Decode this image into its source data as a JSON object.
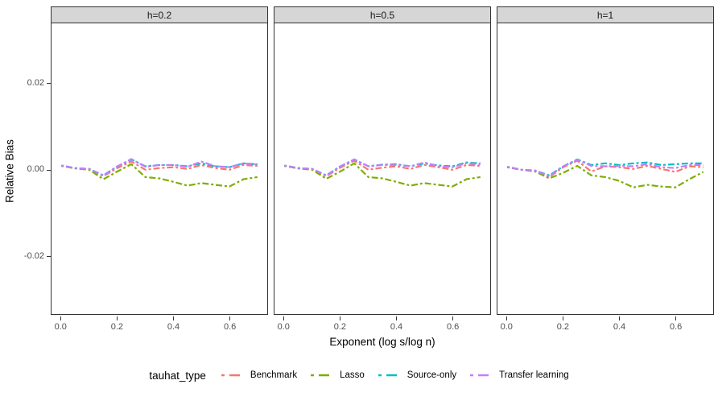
{
  "chart_data": {
    "type": "line",
    "title": "",
    "xlabel": "Exponent (log s/log n)",
    "ylabel": "Relative Bias",
    "legend_title": "tauhat_type",
    "legend_position": "bottom",
    "grid": false,
    "line_style": "twodash",
    "xlim": [
      -0.035,
      0.735
    ],
    "ylim": [
      -0.0336,
      0.0337
    ],
    "x_ticks": {
      "values": [
        0.0,
        0.2,
        0.4,
        0.6
      ],
      "labels": [
        "0.0",
        "0.2",
        "0.4",
        "0.6"
      ]
    },
    "y_ticks": {
      "values": [
        0.02,
        0.0,
        -0.02
      ],
      "labels": [
        "0.02",
        "0.00",
        "-0.02"
      ]
    },
    "x": [
      0.0,
      0.05,
      0.1,
      0.15,
      0.2,
      0.25,
      0.3,
      0.35,
      0.4,
      0.45,
      0.5,
      0.55,
      0.6,
      0.65,
      0.7
    ],
    "series_names": [
      "Benchmark",
      "Lasso",
      "Source-only",
      "Transfer learning"
    ],
    "series_colors": {
      "Benchmark": "#F8766D",
      "Lasso": "#7CAE00",
      "Source-only": "#00BFC4",
      "Transfer learning": "#C77CFF"
    },
    "facets": [
      {
        "label": "h=0.2",
        "series": [
          {
            "name": "Benchmark",
            "values": [
              0.0007,
              0.0002,
              0.0,
              -0.0017,
              0.0002,
              0.0017,
              -0.0002,
              0.0002,
              0.0004,
              0.0,
              0.0009,
              0.0002,
              -0.0002,
              0.0009,
              0.0007
            ]
          },
          {
            "name": "Lasso",
            "values": [
              0.0007,
              0.0001,
              -0.0002,
              -0.0024,
              -0.0006,
              0.0011,
              -0.0019,
              -0.0022,
              -0.003,
              -0.0039,
              -0.0033,
              -0.0037,
              -0.0041,
              -0.0024,
              -0.0019
            ]
          },
          {
            "name": "Source-only",
            "values": [
              0.0008,
              0.0002,
              0.0,
              -0.0015,
              0.0006,
              0.0022,
              0.0006,
              0.0009,
              0.0009,
              0.0006,
              0.0013,
              0.0006,
              0.0004,
              0.0013,
              0.0011
            ]
          },
          {
            "name": "Transfer learning",
            "values": [
              0.0008,
              0.0002,
              0.0,
              -0.0016,
              0.0006,
              0.0023,
              0.0005,
              0.0009,
              0.0009,
              0.0005,
              0.0017,
              0.0006,
              0.0004,
              0.0013,
              0.001
            ]
          }
        ]
      },
      {
        "label": "h=0.5",
        "series": [
          {
            "name": "Benchmark",
            "values": [
              0.0007,
              0.0002,
              0.0,
              -0.0017,
              0.0003,
              0.0019,
              -0.0002,
              0.0003,
              0.0006,
              0.0,
              0.0009,
              0.0004,
              -0.0002,
              0.0009,
              0.0007
            ]
          },
          {
            "name": "Lasso",
            "values": [
              0.0007,
              0.0001,
              -0.0002,
              -0.0023,
              -0.0006,
              0.0013,
              -0.0019,
              -0.0022,
              -0.003,
              -0.0039,
              -0.0033,
              -0.0037,
              -0.0041,
              -0.0024,
              -0.0019
            ]
          },
          {
            "name": "Source-only",
            "values": [
              0.0008,
              0.0002,
              0.0,
              -0.0015,
              0.0006,
              0.0022,
              0.0006,
              0.001,
              0.0011,
              0.0006,
              0.0013,
              0.0008,
              0.0006,
              0.0015,
              0.0013
            ]
          },
          {
            "name": "Transfer learning",
            "values": [
              0.0008,
              0.0002,
              0.0,
              -0.0016,
              0.0006,
              0.0022,
              0.0006,
              0.0009,
              0.0009,
              0.0006,
              0.0015,
              0.0006,
              0.0004,
              0.0013,
              0.0011
            ]
          }
        ]
      },
      {
        "label": "h=1",
        "series": [
          {
            "name": "Benchmark",
            "values": [
              0.0004,
              -0.0002,
              -0.0004,
              -0.0019,
              0.0004,
              0.0019,
              -0.0006,
              0.0006,
              0.0004,
              0.0,
              0.0007,
              0.0,
              -0.0007,
              0.0006,
              0.0004
            ]
          },
          {
            "name": "Lasso",
            "values": [
              0.0004,
              -0.0002,
              -0.0006,
              -0.0022,
              -0.0009,
              0.0007,
              -0.0015,
              -0.0019,
              -0.0028,
              -0.0043,
              -0.0037,
              -0.0041,
              -0.0043,
              -0.0024,
              -0.0007
            ]
          },
          {
            "name": "Source-only",
            "values": [
              0.0005,
              -0.0002,
              -0.0004,
              -0.0015,
              0.0006,
              0.0022,
              0.0009,
              0.0013,
              0.0009,
              0.0013,
              0.0015,
              0.0009,
              0.0011,
              0.0013,
              0.0013
            ]
          },
          {
            "name": "Transfer learning",
            "values": [
              0.0005,
              -0.0002,
              -0.0004,
              -0.0017,
              0.0006,
              0.0021,
              0.0007,
              0.0006,
              0.0007,
              0.0006,
              0.0011,
              0.0004,
              0.0002,
              0.0009,
              0.0009
            ]
          }
        ]
      }
    ]
  }
}
